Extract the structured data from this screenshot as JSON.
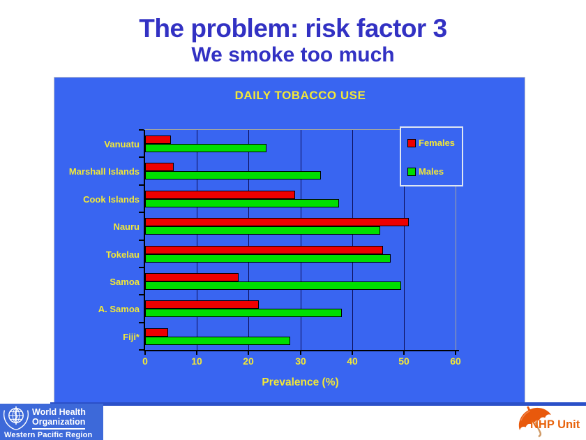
{
  "slide": {
    "title": "The problem: risk factor 3",
    "subtitle": "We smoke too much"
  },
  "chart_data": {
    "type": "bar",
    "orientation": "horizontal",
    "title": "DAILY TOBACCO USE",
    "categories": [
      "Vanuatu",
      "Marshall Islands",
      "Cook Islands",
      "Nauru",
      "Tokelau",
      "Samoa",
      "A. Samoa",
      "Fiji*"
    ],
    "series": [
      {
        "name": "Females",
        "color": "#ee0000",
        "values": [
          5,
          5.5,
          29,
          51,
          46,
          18,
          22,
          4.5
        ]
      },
      {
        "name": "Males",
        "color": "#00de00",
        "values": [
          23.5,
          34,
          37.5,
          45.5,
          47.5,
          49.5,
          38,
          28
        ]
      }
    ],
    "xlabel": "Prevalence (%)",
    "xlim": [
      0,
      60
    ],
    "x_ticks": [
      0,
      10,
      20,
      30,
      40,
      50,
      60
    ],
    "grid": true,
    "legend_position": "top-right",
    "colors": {
      "plot_bg": "#3965f1",
      "gridline": "#0c0c55",
      "text_yellow": "#f2e838",
      "axis": "#000000"
    }
  },
  "footer": {
    "who": {
      "org_line1": "World Health",
      "org_line2": "Organization",
      "region": "Western Pacific Region",
      "emblem_icon": "who-emblem-icon",
      "box_color": "#3d69d9"
    },
    "nhp": {
      "label": "NHP Unit",
      "icon": "umbrella-icon",
      "color": "#e8640e"
    }
  },
  "theme": {
    "title_color": "#3231c3",
    "divider_color": "#2b50c8",
    "chart_bg": "#3965f1"
  }
}
